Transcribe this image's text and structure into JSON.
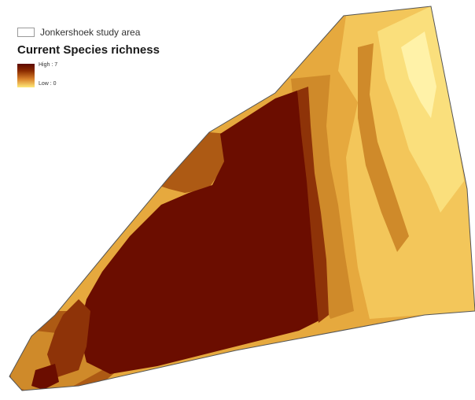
{
  "legend": {
    "study_area_label": "Jonkershoek study area",
    "title": "Current Species richness",
    "high_label": "High : 7",
    "low_label": "Low : 0"
  },
  "colors": {
    "class_7": "#6b0d00",
    "class_6": "#8e3308",
    "class_5": "#ad5a14",
    "class_4": "#cf8a2a",
    "class_3": "#e6a93e",
    "class_2": "#f3c65a",
    "class_1": "#fadf7c",
    "class_0": "#fff2a8",
    "boundary": "#555555"
  }
}
